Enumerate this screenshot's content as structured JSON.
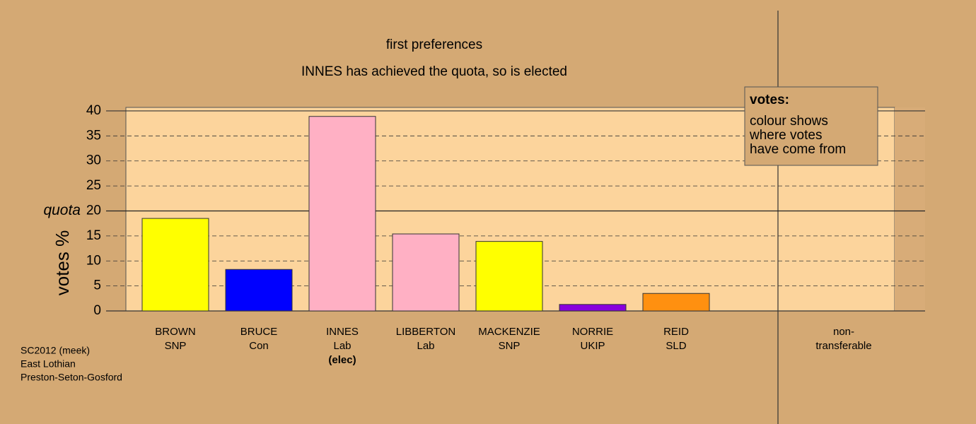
{
  "chart_data": {
    "type": "bar",
    "titles": [
      "first preferences",
      "INNES has achieved the quota, so is elected"
    ],
    "y_label": "votes %",
    "categories": [
      [
        "BROWN",
        "SNP"
      ],
      [
        "BRUCE",
        "Con"
      ],
      [
        "INNES",
        "Lab",
        "(elec)"
      ],
      [
        "LIBBERTON",
        "Lab"
      ],
      [
        "MACKENZIE",
        "SNP"
      ],
      [
        "NORRIE",
        "UKIP"
      ],
      [
        "REID",
        "SLD"
      ],
      [
        "non-",
        "transferable"
      ]
    ],
    "values": [
      18.5,
      8.3,
      38.9,
      15.4,
      13.9,
      1.3,
      3.5,
      0
    ],
    "colors": [
      "#ffff00",
      "#0000ff",
      "#ffb0c4",
      "#ffb0c4",
      "#ffff00",
      "#8800dd",
      "#ff9010",
      "#999999"
    ],
    "ylim": [
      0,
      40.7
    ],
    "yticks": [
      0,
      5,
      10,
      15,
      20,
      25,
      30,
      35,
      40
    ],
    "quota": 20,
    "quota_label": "quota",
    "legend": [
      "votes:",
      "colour shows",
      "where votes",
      "have come from"
    ],
    "footnote": [
      "SC2012 (meek)",
      "East Lothian",
      "Preston-Seton-Gosford"
    ]
  }
}
